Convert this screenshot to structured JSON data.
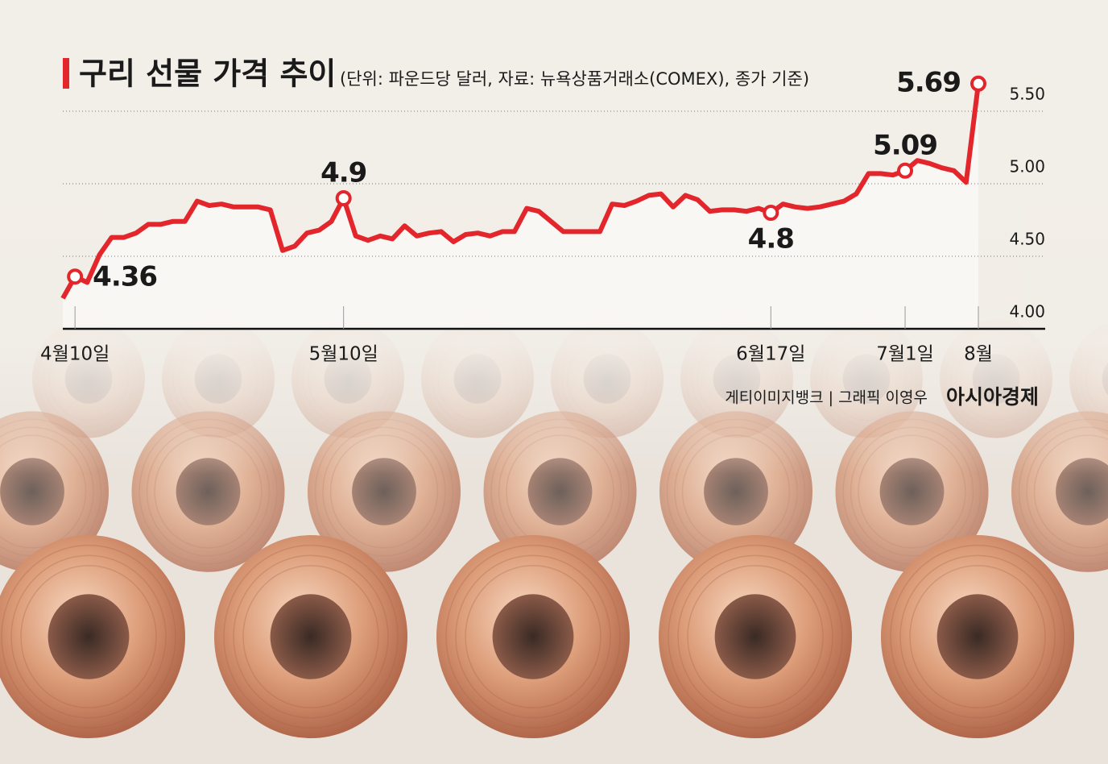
{
  "chart_data": {
    "type": "line",
    "title": "구리 선물 가격 추이",
    "subtitle": "(단위: 파운드당 달러, 자료: 뉴욕상품거래소(COMEX), 종가 기준)",
    "source": "게티이미지뱅크 | 그래픽 이영우",
    "brand": "아시아경제",
    "categories": [
      null,
      "4월10일",
      null,
      null,
      null,
      null,
      null,
      null,
      null,
      null,
      null,
      null,
      null,
      null,
      null,
      null,
      null,
      null,
      null,
      null,
      null,
      null,
      null,
      "5월10일",
      null,
      null,
      null,
      null,
      null,
      null,
      null,
      null,
      null,
      null,
      null,
      null,
      null,
      null,
      null,
      null,
      null,
      null,
      null,
      null,
      null,
      null,
      null,
      null,
      null,
      null,
      null,
      null,
      null,
      null,
      null,
      null,
      null,
      null,
      "6월17일",
      null,
      null,
      null,
      null,
      null,
      null,
      null,
      null,
      null,
      null,
      "7월1일",
      null,
      null,
      null,
      null,
      null,
      "8월"
    ],
    "series": [
      {
        "name": "구리 선물 가격",
        "color": "#e3262b",
        "values": [
          4.21,
          4.36,
          4.32,
          4.51,
          4.63,
          4.63,
          4.66,
          4.72,
          4.72,
          4.74,
          4.74,
          4.88,
          4.85,
          4.86,
          4.84,
          4.84,
          4.84,
          4.82,
          4.54,
          4.57,
          4.66,
          4.68,
          4.74,
          4.9,
          4.64,
          4.61,
          4.64,
          4.62,
          4.71,
          4.64,
          4.66,
          4.67,
          4.6,
          4.65,
          4.66,
          4.64,
          4.67,
          4.67,
          4.83,
          4.81,
          4.74,
          4.67,
          4.67,
          4.67,
          4.67,
          4.86,
          4.85,
          4.88,
          4.92,
          4.93,
          4.84,
          4.92,
          4.89,
          4.81,
          4.82,
          4.82,
          4.81,
          4.83,
          4.8,
          4.86,
          4.84,
          4.83,
          4.84,
          4.86,
          4.88,
          4.93,
          5.07,
          5.07,
          5.06,
          5.09,
          5.16,
          5.14,
          5.11,
          5.09,
          5.01,
          5.69
        ]
      }
    ],
    "annotated_points": [
      1,
      23,
      58,
      69,
      75
    ],
    "ylim": [
      4.0,
      5.7
    ],
    "yticks": [
      {
        "value": 4,
        "label": "4.00"
      },
      {
        "value": 4.5,
        "label": "4.50"
      },
      {
        "value": 5,
        "label": "5.00"
      },
      {
        "value": 5.5,
        "label": "5.50"
      }
    ],
    "grid": true
  }
}
